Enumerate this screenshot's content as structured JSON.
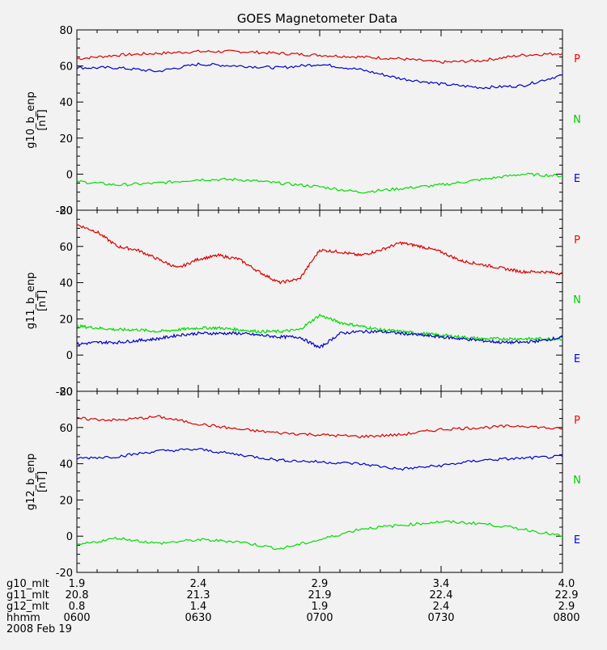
{
  "title": "GOES Magnetometer Data",
  "component_labels": [
    {
      "label": "P",
      "color": "#ff0000"
    },
    {
      "label": "N",
      "color": "#00cc00"
    },
    {
      "label": "E",
      "color": "#0000ff"
    }
  ],
  "colors": {
    "P": "#dd0000",
    "N": "#00dd00",
    "E": "#0000cc",
    "axis": "#000000",
    "background": "#f2f2f2"
  },
  "footer": {
    "rows": [
      {
        "label": "g10_mlt",
        "values": [
          "1.9",
          "2.4",
          "2.9",
          "3.4",
          "4.0"
        ]
      },
      {
        "label": "g11_mlt",
        "values": [
          "20.8",
          "21.3",
          "21.9",
          "22.4",
          "22.9"
        ]
      },
      {
        "label": "g12_mlt",
        "values": [
          "0.8",
          "1.4",
          "1.9",
          "2.4",
          "2.9"
        ]
      },
      {
        "label": "hhmm",
        "values": [
          "0600",
          "0630",
          "0700",
          "0730",
          "0800"
        ]
      }
    ],
    "date": "2008 Feb 19"
  },
  "chart_data": [
    {
      "type": "line",
      "ylabel": "g10_b_enp\n[nT]",
      "ylim": [
        -20,
        80
      ],
      "yticks": [
        "-20",
        "0",
        "20",
        "40",
        "60",
        "80"
      ],
      "x": [
        0,
        10,
        20,
        30,
        40,
        50,
        60,
        70,
        80,
        90,
        100,
        110,
        120
      ],
      "series": [
        {
          "name": "P",
          "color": "#dd0000",
          "values": [
            64,
            66,
            67,
            68,
            68,
            67,
            66,
            65,
            64,
            62,
            63,
            66,
            67
          ]
        },
        {
          "name": "E",
          "color": "#0000cc",
          "values": [
            59,
            59,
            57,
            61,
            60,
            59,
            61,
            58,
            53,
            50,
            48,
            49,
            55
          ]
        },
        {
          "name": "N",
          "color": "#00dd00",
          "values": [
            -4,
            -6,
            -5,
            -3,
            -3,
            -5,
            -7,
            -10,
            -8,
            -6,
            -3,
            0,
            -1
          ]
        }
      ]
    },
    {
      "type": "line",
      "ylabel": "g11_b_enp\n[nT]",
      "ylim": [
        -20,
        80
      ],
      "yticks": [
        "-20",
        "0",
        "20",
        "40",
        "60",
        "80"
      ],
      "x": [
        0,
        5,
        10,
        15,
        20,
        25,
        30,
        35,
        40,
        45,
        50,
        55,
        60,
        65,
        70,
        75,
        80,
        85,
        90,
        95,
        100,
        105,
        110,
        115,
        120
      ],
      "series": [
        {
          "name": "P",
          "color": "#dd0000",
          "values": [
            72,
            68,
            60,
            58,
            53,
            48,
            53,
            55,
            53,
            46,
            40,
            42,
            58,
            57,
            55,
            58,
            62,
            60,
            57,
            52,
            50,
            48,
            46,
            46,
            45
          ]
        },
        {
          "name": "N",
          "color": "#00dd00",
          "values": [
            16,
            15,
            14,
            14,
            13,
            14,
            15,
            15,
            14,
            13,
            13,
            14,
            22,
            18,
            16,
            14,
            13,
            12,
            11,
            10,
            9,
            9,
            9,
            9,
            9
          ]
        },
        {
          "name": "E",
          "color": "#0000cc",
          "values": [
            6,
            7,
            7,
            8,
            9,
            11,
            12,
            12,
            12,
            11,
            10,
            10,
            4,
            12,
            13,
            13,
            12,
            11,
            10,
            9,
            8,
            7,
            7,
            8,
            10
          ]
        }
      ]
    },
    {
      "type": "line",
      "ylabel": "g12_b_enp\n[nT]",
      "ylim": [
        -20,
        80
      ],
      "yticks": [
        "-20",
        "0",
        "20",
        "40",
        "60",
        "80"
      ],
      "x": [
        0,
        10,
        20,
        30,
        40,
        50,
        60,
        70,
        80,
        90,
        100,
        110,
        120
      ],
      "series": [
        {
          "name": "P",
          "color": "#dd0000",
          "values": [
            65,
            64,
            66,
            62,
            59,
            57,
            56,
            55,
            56,
            59,
            60,
            61,
            59
          ]
        },
        {
          "name": "E",
          "color": "#0000cc",
          "values": [
            43,
            44,
            47,
            48,
            45,
            42,
            41,
            40,
            37,
            39,
            42,
            43,
            44
          ]
        },
        {
          "name": "N",
          "color": "#00dd00",
          "values": [
            -5,
            -1,
            -4,
            -2,
            -3,
            -7,
            -2,
            4,
            6,
            8,
            7,
            4,
            0
          ]
        }
      ]
    }
  ]
}
